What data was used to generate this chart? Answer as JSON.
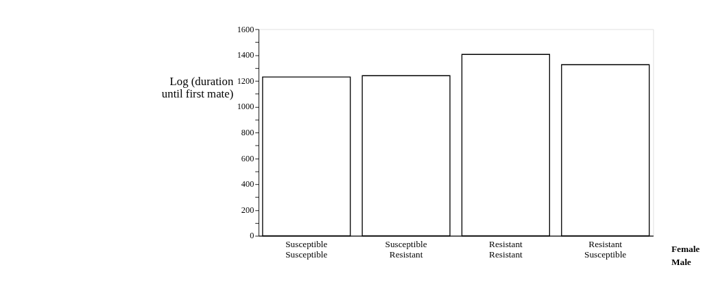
{
  "chart_data": {
    "type": "bar",
    "ylabel": "Log (duration\nuntil first mate)",
    "categories": [
      "Susceptible\nSusceptible",
      "Susceptible\nResistant",
      "Resistant\nResistant",
      "Resistant\nSusceptible"
    ],
    "values": [
      1230,
      1240,
      1405,
      1325
    ],
    "color": "#ffffff",
    "ylim": [
      0,
      1600
    ],
    "yticks": [
      0,
      {
        "value": 100,
        "label": null
      },
      200,
      {
        "value": 300,
        "label": null
      },
      400,
      {
        "value": 500,
        "label": null
      },
      600,
      {
        "value": 700,
        "label": null
      },
      800,
      {
        "value": 900,
        "label": null
      },
      1000,
      {
        "value": 1100,
        "label": null
      },
      1200,
      {
        "value": 1300,
        "label": null
      },
      1400,
      {
        "value": 1500,
        "label": null
      },
      1600
    ],
    "annotations": [
      "Female",
      "Male"
    ],
    "grid": false
  }
}
